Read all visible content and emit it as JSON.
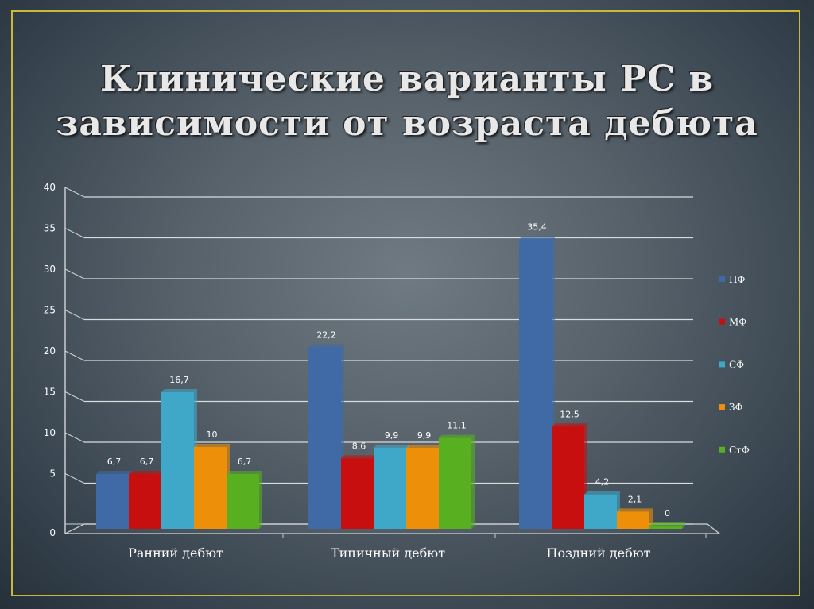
{
  "title": "Клинические варианты РС в зависимости от возраста дебюта",
  "chart_data": {
    "type": "bar",
    "categories": [
      "Ранний дебют",
      "Типичный дебют",
      "Поздний дебют"
    ],
    "series": [
      {
        "name": "ПФ",
        "color": "#3f6aa6",
        "values": [
          6.7,
          22.2,
          35.4
        ],
        "labels": [
          "6,7",
          "22,2",
          "35,4"
        ]
      },
      {
        "name": "МФ",
        "color": "#c80f0f",
        "values": [
          6.7,
          8.6,
          12.5
        ],
        "labels": [
          "6,7",
          "8,6",
          "12,5"
        ]
      },
      {
        "name": "СФ",
        "color": "#3fa8c8",
        "values": [
          16.7,
          9.9,
          4.2
        ],
        "labels": [
          "16,7",
          "9,9",
          "4,2"
        ]
      },
      {
        "name": "ЗФ",
        "color": "#ee8f0a",
        "values": [
          10,
          9.9,
          2.1
        ],
        "labels": [
          "10",
          "9,9",
          "2,1"
        ]
      },
      {
        "name": "СтФ",
        "color": "#58b020",
        "values": [
          6.7,
          11.1,
          0
        ],
        "labels": [
          "6,7",
          "11,1",
          "0"
        ]
      }
    ],
    "yticks": [
      "0",
      "5",
      "10",
      "15",
      "20",
      "25",
      "30",
      "35",
      "40"
    ],
    "ylim": [
      0,
      40
    ],
    "grid": true,
    "legend": "right",
    "xlabel": "",
    "ylabel": ""
  }
}
